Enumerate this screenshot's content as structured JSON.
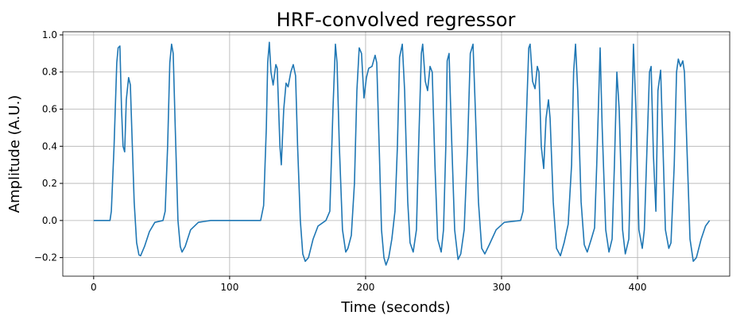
{
  "chart_data": {
    "type": "line",
    "title": "HRF-convolved regressor",
    "xlabel": "Time (seconds)",
    "ylabel": "Amplitude (A.U.)",
    "grid": true,
    "xlim": [
      -22.7,
      467.8
    ],
    "ylim": [
      -0.3,
      1.017
    ],
    "xticks": [
      0,
      100,
      200,
      300,
      400
    ],
    "yticks": [
      {
        "value": -0.2,
        "label": "−0.2"
      },
      {
        "value": 0,
        "label": "0.0"
      },
      {
        "value": 0.2,
        "label": "0.2"
      },
      {
        "value": 0.4,
        "label": "0.4"
      },
      {
        "value": 0.6,
        "label": "0.6"
      },
      {
        "value": 0.8,
        "label": "0.8"
      },
      {
        "value": 1,
        "label": "1.0"
      }
    ],
    "series": [
      {
        "color": "#1f77b4",
        "x": [
          0,
          12,
          13,
          15,
          17,
          18,
          19.3,
          20.5,
          21.6,
          22.8,
          24,
          25.7,
          27,
          28,
          29.8,
          31.6,
          33.3,
          34.5,
          37.4,
          41,
          45,
          51,
          52.6,
          54.4,
          56,
          57.3,
          58.5,
          60,
          62,
          63.7,
          65,
          67.3,
          71.3,
          77,
          86,
          122.8,
          125,
          127,
          128,
          129.2,
          130.4,
          132,
          134,
          135,
          137,
          138,
          139.8,
          141.5,
          143,
          145,
          146.8,
          148.5,
          150,
          152,
          153.8,
          155.6,
          158,
          161.4,
          165,
          170.8,
          173.7,
          176,
          177.8,
          179,
          180.7,
          183,
          185.4,
          187,
          189.5,
          191.8,
          193.6,
          195.3,
          197,
          198.8,
          200.6,
          202.3,
          204.7,
          207,
          208.2,
          210,
          211.7,
          213.5,
          215,
          217,
          219.3,
          221.6,
          223.4,
          225,
          227,
          228.7,
          231,
          232.7,
          235,
          237.4,
          239,
          241,
          242,
          243.9,
          245.6,
          247.4,
          249,
          251,
          253,
          255.6,
          257.3,
          259,
          260,
          261.4,
          263,
          265.5,
          268,
          270,
          272.5,
          275,
          277,
          279,
          280.7,
          283,
          285.4,
          287.7,
          291,
          296,
          302,
          314,
          315.8,
          318,
          320,
          321,
          322.8,
          324.6,
          326.3,
          327.5,
          329.2,
          331,
          332.7,
          334.5,
          335.7,
          338,
          340.4,
          343.3,
          346,
          349,
          351.5,
          353,
          354.4,
          356,
          358.5,
          360.8,
          363,
          366,
          368.4,
          370,
          372.5,
          374,
          376.6,
          379,
          381.3,
          383,
          384.8,
          386.5,
          389,
          391,
          393.6,
          395.3,
          397,
          398.8,
          401,
          403.5,
          405,
          407,
          408.8,
          410,
          411.7,
          413.5,
          415,
          417,
          418.7,
          420.5,
          423,
          424.6,
          427,
          428.7,
          430,
          431.6,
          433.3,
          434.5,
          436.3,
          438.6,
          441,
          443.3,
          446.8,
          450,
          453
        ],
        "values": [
          0,
          0,
          0.05,
          0.4,
          0.85,
          0.93,
          0.94,
          0.6,
          0.4,
          0.37,
          0.65,
          0.77,
          0.73,
          0.5,
          0.1,
          -0.12,
          -0.185,
          -0.19,
          -0.14,
          -0.06,
          -0.01,
          0,
          0.05,
          0.4,
          0.85,
          0.95,
          0.9,
          0.5,
          0,
          -0.14,
          -0.17,
          -0.14,
          -0.05,
          -0.01,
          0,
          0,
          0.08,
          0.5,
          0.85,
          0.96,
          0.8,
          0.73,
          0.84,
          0.82,
          0.4,
          0.3,
          0.6,
          0.74,
          0.72,
          0.8,
          0.84,
          0.78,
          0.4,
          0,
          -0.18,
          -0.22,
          -0.2,
          -0.1,
          -0.03,
          0,
          0.05,
          0.6,
          0.95,
          0.85,
          0.4,
          -0.05,
          -0.17,
          -0.15,
          -0.08,
          0.2,
          0.7,
          0.93,
          0.9,
          0.66,
          0.77,
          0.82,
          0.83,
          0.89,
          0.85,
          0.4,
          -0.05,
          -0.2,
          -0.24,
          -0.2,
          -0.1,
          0.05,
          0.4,
          0.88,
          0.95,
          0.7,
          0.1,
          -0.12,
          -0.17,
          -0.05,
          0.4,
          0.9,
          0.95,
          0.75,
          0.7,
          0.83,
          0.8,
          0.3,
          -0.1,
          -0.17,
          -0.05,
          0.4,
          0.86,
          0.9,
          0.5,
          -0.05,
          -0.21,
          -0.18,
          -0.05,
          0.4,
          0.9,
          0.95,
          0.6,
          0.1,
          -0.15,
          -0.18,
          -0.13,
          -0.05,
          -0.01,
          0,
          0.05,
          0.5,
          0.93,
          0.95,
          0.75,
          0.71,
          0.83,
          0.8,
          0.4,
          0.28,
          0.55,
          0.65,
          0.55,
          0.1,
          -0.15,
          -0.19,
          -0.12,
          -0.02,
          0.3,
          0.8,
          0.95,
          0.7,
          0.1,
          -0.13,
          -0.17,
          -0.1,
          -0.04,
          0.3,
          0.93,
          0.5,
          -0.05,
          -0.17,
          -0.1,
          0.3,
          0.8,
          0.6,
          -0.05,
          -0.18,
          -0.1,
          0.4,
          0.95,
          0.6,
          -0.05,
          -0.15,
          -0.05,
          0.4,
          0.8,
          0.83,
          0.35,
          0.05,
          0.7,
          0.81,
          0.4,
          -0.05,
          -0.15,
          -0.12,
          0.3,
          0.8,
          0.87,
          0.83,
          0.86,
          0.8,
          0.4,
          -0.1,
          -0.22,
          -0.2,
          -0.1,
          -0.03,
          0
        ]
      }
    ]
  }
}
